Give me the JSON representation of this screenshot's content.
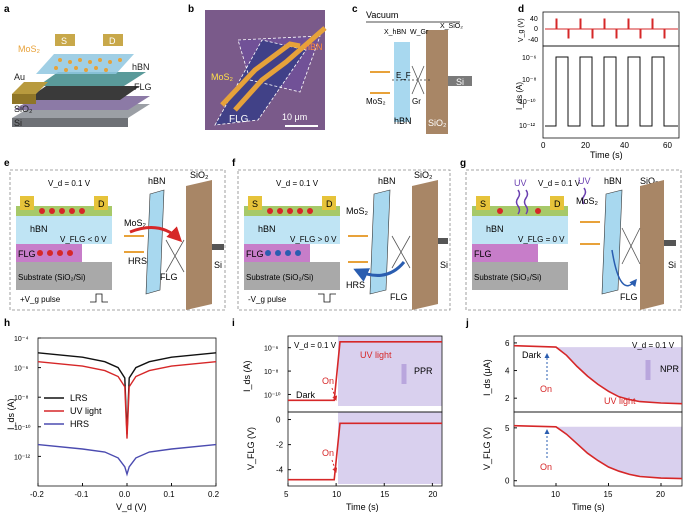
{
  "figure": {
    "colors": {
      "hbn": "#a8d8ef",
      "sio2": "#a88666",
      "mos2": "#e8a23a",
      "red": "#d62728",
      "purple": "#9b85c9",
      "flg": "#c77dc9",
      "gold": "#c9a444"
    },
    "panels": {
      "a": {
        "label": "a",
        "texts": {
          "s": "S",
          "d": "D",
          "mos2": "MoS₂",
          "hbn": "hBN",
          "au": "Au",
          "flg": "FLG",
          "sio2": "SiO₂",
          "si": "Si"
        }
      },
      "b": {
        "label": "b",
        "texts": {
          "hbn": "hBN",
          "mos2": "MoS₂",
          "flg": "FLG",
          "scale": "10 μm"
        }
      },
      "c": {
        "label": "c",
        "texts": {
          "vacuum": "Vacuum",
          "x_hbn": "X_hBN",
          "w_gr": "W_Gr",
          "x_sio2": "X_SiO₂",
          "ef": "E_F",
          "gr": "Gr",
          "mos2": "MoS₂",
          "hbn": "hBN",
          "sio2": "SiO₂",
          "si": "Si"
        }
      },
      "d": {
        "label": "d",
        "texts": {
          "vg_label": "V_g (V)",
          "ids_label": "I_ds (A)",
          "xlabel": "Time (s)"
        },
        "vg_ticks": [
          "40",
          "0",
          "-40"
        ],
        "ids_ticks": [
          "10⁻⁶",
          "10⁻⁸",
          "10⁻¹⁰",
          "10⁻¹²"
        ],
        "x_ticks": [
          "0",
          "20",
          "40",
          "60"
        ]
      },
      "e": {
        "label": "e",
        "texts": {
          "s": "S",
          "d": "D",
          "vd": "V_d = 0.1 V",
          "vflg": "V_FLG < 0 V",
          "hbn": "hBN",
          "flg": "FLG",
          "substrate": "Substrate (SiO₂/Si)",
          "pulse": "+V_g pulse",
          "mos2": "MoS₂",
          "sio2": "SiO₂",
          "hrs": "HRS",
          "flg2": "FLG",
          "si": "Si"
        }
      },
      "f": {
        "label": "f",
        "texts": {
          "s": "S",
          "d": "D",
          "vd": "V_d = 0.1 V",
          "vflg": "V_FLG > 0 V",
          "hbn": "hBN",
          "flg": "FLG",
          "substrate": "Substrate (SiO₂/Si)",
          "pulse": "-V_g pulse",
          "mos2": "MoS₂",
          "sio2": "SiO₂",
          "hrs": "HRS",
          "flg2": "FLG",
          "si": "Si",
          "hbn2": "hBN"
        }
      },
      "g": {
        "label": "g",
        "texts": {
          "uv": "UV",
          "uv2": "UV",
          "s": "S",
          "d": "D",
          "vd": "V_d = 0.1 V",
          "vflg": "V_FLG = 0 V",
          "hbn": "hBN",
          "flg": "FLG",
          "substrate": "Substrate (SiO₂/Si)",
          "mos2": "MoS₂",
          "hbn2": "hBN",
          "sio2": "SiO₂",
          "flg2": "FLG",
          "si": "Si"
        }
      }
    }
  },
  "chart_data": [
    {
      "panel": "h",
      "type": "line",
      "xlabel": "V_d (V)",
      "ylabel": "I_ds (A)",
      "xlim": [
        -0.2,
        0.2
      ],
      "ylim_log10": [
        -14,
        -4
      ],
      "y_scale": "log",
      "x_ticks": [
        "-0.2",
        "-0.1",
        "0.0",
        "0.1",
        "0.2"
      ],
      "y_ticks": [
        "10⁻⁴",
        "10⁻⁶",
        "10⁻⁸",
        "10⁻¹⁰",
        "10⁻¹²"
      ],
      "legend_placement": "center-left",
      "series": [
        {
          "name": "LRS",
          "color": "#111111",
          "x": [
            -0.2,
            -0.1,
            -0.05,
            -0.02,
            -0.005,
            0,
            0.005,
            0.02,
            0.05,
            0.1,
            0.2
          ],
          "y_log10": [
            -5.0,
            -5.3,
            -5.6,
            -6.0,
            -6.7,
            -10.5,
            -6.7,
            -6.0,
            -5.6,
            -5.3,
            -5.0
          ]
        },
        {
          "name": "UV light",
          "color": "#d62728",
          "x": [
            -0.2,
            -0.1,
            -0.05,
            -0.02,
            -0.005,
            0,
            0.005,
            0.02,
            0.05,
            0.1,
            0.2
          ],
          "y_log10": [
            -5.6,
            -5.9,
            -6.2,
            -6.6,
            -7.3,
            -10.8,
            -7.3,
            -6.6,
            -6.2,
            -5.9,
            -5.6
          ]
        },
        {
          "name": "HRS",
          "color": "#4b4bb0",
          "x": [
            -0.2,
            -0.1,
            -0.05,
            -0.02,
            -0.005,
            0,
            0.005,
            0.02,
            0.05,
            0.1,
            0.2
          ],
          "y_log10": [
            -11.2,
            -11.5,
            -11.7,
            -12.1,
            -12.7,
            -13.2,
            -12.7,
            -12.1,
            -11.7,
            -11.5,
            -11.2
          ]
        }
      ]
    },
    {
      "panel": "i",
      "type": "line",
      "xlabel": "Time (s)",
      "xlim": [
        5,
        21
      ],
      "x_ticks": [
        "5",
        "10",
        "15",
        "20"
      ],
      "annotations": {
        "vd": "V_d = 0.1 V",
        "on": "On",
        "on2": "On",
        "uv": "UV light",
        "ppr": "PPR",
        "dark": "Dark"
      },
      "top": {
        "ylabel": "I_ds (A)",
        "y_scale": "log",
        "ylim_log10": [
          -11.5,
          -5
        ],
        "y_ticks": [
          "10⁻⁶",
          "10⁻⁸",
          "10⁻¹⁰"
        ],
        "series": [
          {
            "name": "",
            "x": [
              5,
              9.8,
              10.4,
              21
            ],
            "y_log10": [
              -10.5,
              -10.5,
              -5.5,
              -5.5
            ]
          }
        ]
      },
      "bottom": {
        "ylabel": "V_FLG (V)",
        "ylim": [
          -5.3,
          0.6
        ],
        "y_ticks": [
          "0",
          "-2",
          "-4"
        ],
        "series": [
          {
            "name": "",
            "x": [
              5,
              9.8,
              10.4,
              21
            ],
            "y": [
              -4.8,
              -4.8,
              -0.3,
              -0.3
            ]
          }
        ]
      }
    },
    {
      "panel": "j",
      "type": "line",
      "xlabel": "Time (s)",
      "xlim": [
        6,
        22
      ],
      "x_ticks": [
        "10",
        "15",
        "20"
      ],
      "annotations": {
        "vd": "V_d = 0.1 V",
        "on": "On",
        "on2": "On",
        "uv": "UV light",
        "npr": "NPR",
        "dark": "Dark"
      },
      "top": {
        "ylabel": "I_ds (μA)",
        "ylim": [
          1,
          6.5
        ],
        "y_ticks": [
          "2",
          "4",
          "6"
        ],
        "series": [
          {
            "name": "",
            "x": [
              6,
              10,
              11,
              12,
              13,
              14,
              15,
              16,
              17,
              18,
              20,
              22
            ],
            "y": [
              5.8,
              5.7,
              5.1,
              4.3,
              3.6,
              3.0,
              2.5,
              2.1,
              1.9,
              1.75,
              1.65,
              1.6
            ]
          }
        ]
      },
      "bottom": {
        "ylabel": "V_FLG (V)",
        "ylim": [
          -0.5,
          6.5
        ],
        "y_ticks": [
          "5",
          "0"
        ],
        "series": [
          {
            "name": "",
            "x": [
              6,
              10,
              11,
              12,
              13,
              14,
              15,
              16,
              17,
              18,
              20,
              22
            ],
            "y": [
              5.2,
              5.1,
              4.4,
              3.5,
              2.6,
              1.9,
              1.3,
              0.9,
              0.6,
              0.4,
              0.25,
              0.2
            ]
          }
        ]
      }
    }
  ]
}
